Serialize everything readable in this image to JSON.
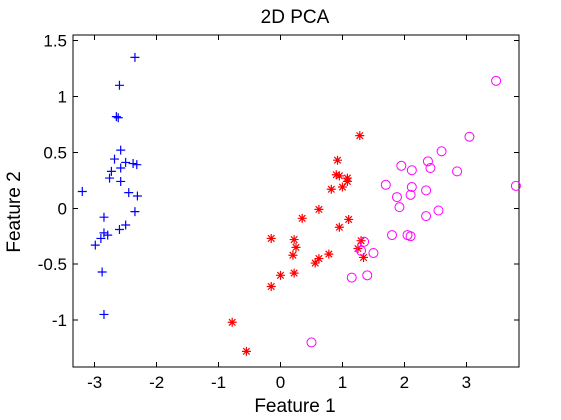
{
  "chart_data": {
    "type": "scatter",
    "title": "2D PCA",
    "xlabel": "Feature 1",
    "ylabel": "Feature 2",
    "xlim": [
      -3.35,
      3.85
    ],
    "ylim": [
      -1.42,
      1.55
    ],
    "x_ticks": [
      -3,
      -2,
      -1,
      0,
      1,
      2,
      3
    ],
    "y_ticks": [
      -1,
      -0.5,
      0,
      0.5,
      1,
      1.5
    ],
    "x_tick_labels": [
      "-3",
      "-2",
      "-1",
      "0",
      "1",
      "2",
      "3"
    ],
    "y_tick_labels": [
      "-1",
      "-0.5",
      "0",
      "0.5",
      "1",
      "1.5"
    ],
    "grid": false,
    "series": [
      {
        "marker": "plus",
        "color": "#0000ff",
        "points": [
          [
            -2.35,
            1.35
          ],
          [
            -2.6,
            1.1
          ],
          [
            -2.65,
            0.82
          ],
          [
            -2.62,
            0.81
          ],
          [
            -2.58,
            0.52
          ],
          [
            -2.68,
            0.44
          ],
          [
            -2.5,
            0.41
          ],
          [
            -2.38,
            0.4
          ],
          [
            -2.32,
            0.39
          ],
          [
            -2.58,
            0.36
          ],
          [
            -2.73,
            0.33
          ],
          [
            -2.76,
            0.27
          ],
          [
            -2.58,
            0.24
          ],
          [
            -3.2,
            0.15
          ],
          [
            -2.45,
            0.14
          ],
          [
            -2.31,
            0.11
          ],
          [
            -2.35,
            -0.03
          ],
          [
            -2.85,
            -0.08
          ],
          [
            -2.5,
            -0.15
          ],
          [
            -2.6,
            -0.19
          ],
          [
            -2.85,
            -0.22
          ],
          [
            -2.79,
            -0.24
          ],
          [
            -2.99,
            -0.33
          ],
          [
            -2.9,
            -0.27
          ],
          [
            -2.88,
            -0.57
          ],
          [
            -2.85,
            -0.95
          ]
        ]
      },
      {
        "marker": "star",
        "color": "#ff0000",
        "points": [
          [
            -0.55,
            -1.28
          ],
          [
            -0.78,
            -1.02
          ],
          [
            -0.15,
            -0.7
          ],
          [
            -0.15,
            -0.27
          ],
          [
            0.0,
            -0.6
          ],
          [
            0.22,
            -0.58
          ],
          [
            0.2,
            -0.42
          ],
          [
            0.25,
            -0.35
          ],
          [
            0.22,
            -0.28
          ],
          [
            0.35,
            -0.09
          ],
          [
            0.62,
            -0.45
          ],
          [
            0.56,
            -0.49
          ],
          [
            0.78,
            -0.41
          ],
          [
            0.62,
            -0.01
          ],
          [
            0.95,
            -0.17
          ],
          [
            1.1,
            -0.1
          ],
          [
            1.25,
            -0.36
          ],
          [
            1.3,
            -0.29
          ],
          [
            1.34,
            -0.44
          ],
          [
            0.82,
            0.17
          ],
          [
            0.9,
            0.3
          ],
          [
            0.92,
            0.43
          ],
          [
            0.95,
            0.29
          ],
          [
            1.0,
            0.19
          ],
          [
            1.08,
            0.24
          ],
          [
            1.08,
            0.27
          ],
          [
            1.28,
            0.65
          ]
        ]
      },
      {
        "marker": "circle",
        "color": "#ff00ff",
        "points": [
          [
            0.5,
            -1.2
          ],
          [
            1.15,
            -0.62
          ],
          [
            1.4,
            -0.6
          ],
          [
            1.35,
            -0.3
          ],
          [
            1.5,
            -0.4
          ],
          [
            1.3,
            -0.38
          ],
          [
            1.7,
            0.21
          ],
          [
            1.8,
            -0.24
          ],
          [
            1.88,
            0.1
          ],
          [
            1.92,
            0.01
          ],
          [
            1.95,
            0.38
          ],
          [
            2.05,
            -0.24
          ],
          [
            2.1,
            -0.25
          ],
          [
            2.1,
            0.12
          ],
          [
            2.12,
            0.19
          ],
          [
            2.12,
            0.34
          ],
          [
            2.35,
            -0.07
          ],
          [
            2.35,
            0.16
          ],
          [
            2.38,
            0.42
          ],
          [
            2.42,
            0.36
          ],
          [
            2.55,
            -0.02
          ],
          [
            2.6,
            0.51
          ],
          [
            2.85,
            0.33
          ],
          [
            3.05,
            0.64
          ],
          [
            3.48,
            1.14
          ],
          [
            3.8,
            0.2
          ]
        ]
      }
    ]
  }
}
